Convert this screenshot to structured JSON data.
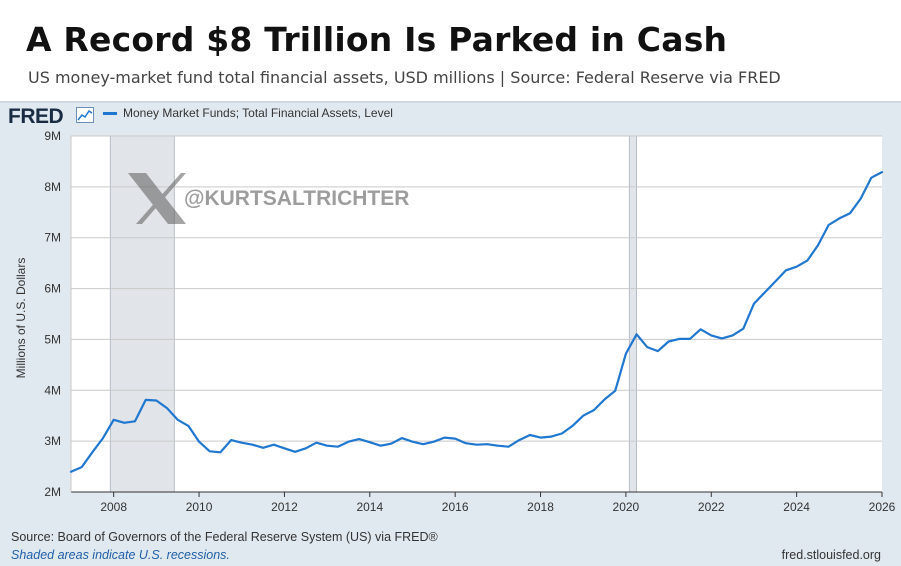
{
  "header": {
    "title": "A Record $8 Trillion Is Parked in Cash",
    "subtitle": "US money-market fund total financial assets, USD millions  |  Source: Federal Reserve via FRED"
  },
  "fred": {
    "logo_text": "FRED",
    "source_text": "Source: Board of Governors of the Federal Reserve System (US) via FRED®",
    "recession_note": "Shaded areas indicate U.S. recessions.",
    "url": "fred.stlouisfed.org"
  },
  "watermark": {
    "handle": "@KURTSALTRICHTER"
  },
  "colors": {
    "line": "#1f77d0",
    "recession": "#e1e5e9",
    "grid": "#c9c9c9"
  },
  "chart_data": {
    "type": "line",
    "ylabel": "Millions of U.S. Dollars",
    "xlabel": "",
    "xlim": [
      2007.0,
      2026.0
    ],
    "ylim": [
      2000000,
      9000000
    ],
    "x_ticks": [
      2008,
      2010,
      2012,
      2014,
      2016,
      2018,
      2020,
      2022,
      2024,
      2026
    ],
    "y_ticks": [
      {
        "value": 2000000,
        "label": "2M"
      },
      {
        "value": 3000000,
        "label": "3M"
      },
      {
        "value": 4000000,
        "label": "4M"
      },
      {
        "value": 5000000,
        "label": "5M"
      },
      {
        "value": 6000000,
        "label": "6M"
      },
      {
        "value": 7000000,
        "label": "7M"
      },
      {
        "value": 8000000,
        "label": "8M"
      },
      {
        "value": 9000000,
        "label": "9M"
      }
    ],
    "grid": true,
    "legend": "top-left",
    "recessions": [
      [
        2007.92,
        2009.42
      ],
      [
        2020.08,
        2020.25
      ]
    ],
    "series": [
      {
        "name": "Money Market Funds; Total Financial Assets, Level",
        "x": [
          2007.0,
          2007.25,
          2007.5,
          2007.75,
          2008.0,
          2008.25,
          2008.5,
          2008.75,
          2009.0,
          2009.25,
          2009.5,
          2009.75,
          2010.0,
          2010.25,
          2010.5,
          2010.75,
          2011.0,
          2011.25,
          2011.5,
          2011.75,
          2012.0,
          2012.25,
          2012.5,
          2012.75,
          2013.0,
          2013.25,
          2013.5,
          2013.75,
          2014.0,
          2014.25,
          2014.5,
          2014.75,
          2015.0,
          2015.25,
          2015.5,
          2015.75,
          2016.0,
          2016.25,
          2016.5,
          2016.75,
          2017.0,
          2017.25,
          2017.5,
          2017.75,
          2018.0,
          2018.25,
          2018.5,
          2018.75,
          2019.0,
          2019.25,
          2019.5,
          2019.75,
          2020.0,
          2020.25,
          2020.5,
          2020.75,
          2021.0,
          2021.25,
          2021.5,
          2021.75,
          2022.0,
          2022.25,
          2022.5,
          2022.75,
          2023.0,
          2023.25,
          2023.5,
          2023.75,
          2024.0,
          2024.25,
          2024.5,
          2024.75,
          2025.0,
          2025.25,
          2025.5,
          2025.75
        ],
        "values": [
          2400000,
          2490000,
          2780000,
          3060000,
          3420000,
          3360000,
          3390000,
          3810000,
          3800000,
          3650000,
          3420000,
          3300000,
          2990000,
          2800000,
          2780000,
          3020000,
          2970000,
          2930000,
          2870000,
          2930000,
          2860000,
          2790000,
          2860000,
          2970000,
          2910000,
          2890000,
          2990000,
          3040000,
          2980000,
          2910000,
          2950000,
          3060000,
          2990000,
          2940000,
          2990000,
          3070000,
          3050000,
          2960000,
          2930000,
          2940000,
          2910000,
          2890000,
          3020000,
          3120000,
          3070000,
          3090000,
          3150000,
          3300000,
          3500000,
          3610000,
          3820000,
          3990000,
          4720000,
          5100000,
          4850000,
          4770000,
          4960000,
          5010000,
          5010000,
          5200000,
          5080000,
          5020000,
          5080000,
          5210000,
          5700000,
          5920000,
          6140000,
          6360000,
          6430000,
          6550000,
          6850000,
          7250000,
          7380000,
          7480000,
          7770000,
          8180000
        ]
      }
    ],
    "last_point": {
      "x": 2026.0,
      "y": 8290000
    }
  }
}
